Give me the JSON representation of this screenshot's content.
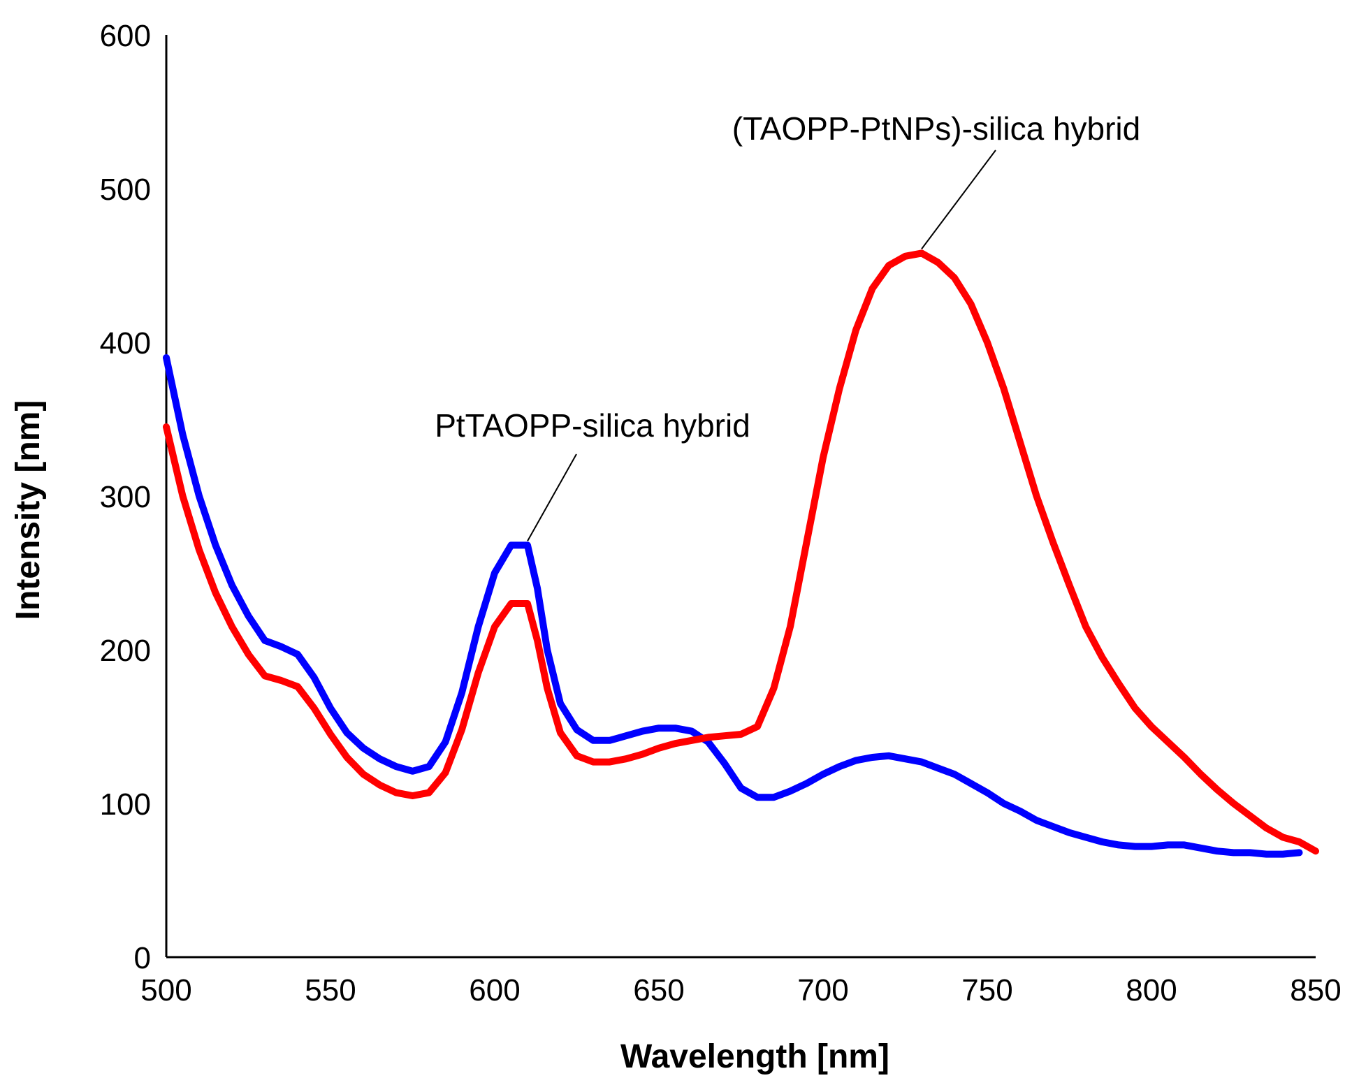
{
  "chart_data": {
    "type": "line",
    "title": "",
    "xlabel": "Wavelength [nm]",
    "ylabel": "Intensity [nm]",
    "xlim": [
      500,
      850
    ],
    "ylim": [
      0,
      600
    ],
    "xticks": [
      500,
      550,
      600,
      650,
      700,
      750,
      800,
      850
    ],
    "yticks": [
      0,
      100,
      200,
      300,
      400,
      500,
      600
    ],
    "grid": false,
    "legend": "none",
    "series": [
      {
        "name": "PtTAOPP-silica hybrid",
        "color": "#0000ff",
        "points": [
          [
            500,
            390
          ],
          [
            505,
            340
          ],
          [
            510,
            300
          ],
          [
            515,
            268
          ],
          [
            520,
            242
          ],
          [
            525,
            222
          ],
          [
            530,
            206
          ],
          [
            535,
            202
          ],
          [
            540,
            197
          ],
          [
            545,
            182
          ],
          [
            550,
            162
          ],
          [
            555,
            146
          ],
          [
            560,
            136
          ],
          [
            565,
            129
          ],
          [
            570,
            124
          ],
          [
            575,
            121
          ],
          [
            580,
            124
          ],
          [
            585,
            140
          ],
          [
            590,
            172
          ],
          [
            595,
            215
          ],
          [
            600,
            250
          ],
          [
            605,
            268
          ],
          [
            610,
            268
          ],
          [
            613,
            240
          ],
          [
            616,
            200
          ],
          [
            620,
            165
          ],
          [
            625,
            148
          ],
          [
            630,
            141
          ],
          [
            635,
            141
          ],
          [
            640,
            144
          ],
          [
            645,
            147
          ],
          [
            650,
            149
          ],
          [
            655,
            149
          ],
          [
            660,
            147
          ],
          [
            665,
            140
          ],
          [
            670,
            126
          ],
          [
            675,
            110
          ],
          [
            680,
            104
          ],
          [
            685,
            104
          ],
          [
            690,
            108
          ],
          [
            695,
            113
          ],
          [
            700,
            119
          ],
          [
            705,
            124
          ],
          [
            710,
            128
          ],
          [
            715,
            130
          ],
          [
            720,
            131
          ],
          [
            725,
            129
          ],
          [
            730,
            127
          ],
          [
            735,
            123
          ],
          [
            740,
            119
          ],
          [
            745,
            113
          ],
          [
            750,
            107
          ],
          [
            755,
            100
          ],
          [
            760,
            95
          ],
          [
            765,
            89
          ],
          [
            770,
            85
          ],
          [
            775,
            81
          ],
          [
            780,
            78
          ],
          [
            785,
            75
          ],
          [
            790,
            73
          ],
          [
            795,
            72
          ],
          [
            800,
            72
          ],
          [
            805,
            73
          ],
          [
            810,
            73
          ],
          [
            815,
            71
          ],
          [
            820,
            69
          ],
          [
            825,
            68
          ],
          [
            830,
            68
          ],
          [
            835,
            67
          ],
          [
            840,
            67
          ],
          [
            845,
            68
          ]
        ]
      },
      {
        "name": "(TAOPP-PtNPs)-silica hybrid",
        "color": "#ff0000",
        "points": [
          [
            500,
            345
          ],
          [
            505,
            300
          ],
          [
            510,
            265
          ],
          [
            515,
            237
          ],
          [
            520,
            215
          ],
          [
            525,
            197
          ],
          [
            530,
            183
          ],
          [
            535,
            180
          ],
          [
            540,
            176
          ],
          [
            545,
            162
          ],
          [
            550,
            145
          ],
          [
            555,
            130
          ],
          [
            560,
            119
          ],
          [
            565,
            112
          ],
          [
            570,
            107
          ],
          [
            575,
            105
          ],
          [
            580,
            107
          ],
          [
            585,
            120
          ],
          [
            590,
            148
          ],
          [
            595,
            185
          ],
          [
            600,
            215
          ],
          [
            605,
            230
          ],
          [
            610,
            230
          ],
          [
            613,
            206
          ],
          [
            616,
            175
          ],
          [
            620,
            146
          ],
          [
            625,
            131
          ],
          [
            630,
            127
          ],
          [
            635,
            127
          ],
          [
            640,
            129
          ],
          [
            645,
            132
          ],
          [
            650,
            136
          ],
          [
            655,
            139
          ],
          [
            660,
            141
          ],
          [
            665,
            143
          ],
          [
            670,
            144
          ],
          [
            675,
            145
          ],
          [
            680,
            150
          ],
          [
            685,
            175
          ],
          [
            690,
            215
          ],
          [
            695,
            270
          ],
          [
            700,
            325
          ],
          [
            705,
            370
          ],
          [
            710,
            408
          ],
          [
            715,
            435
          ],
          [
            720,
            450
          ],
          [
            725,
            456
          ],
          [
            730,
            458
          ],
          [
            735,
            452
          ],
          [
            740,
            442
          ],
          [
            745,
            425
          ],
          [
            750,
            400
          ],
          [
            755,
            370
          ],
          [
            760,
            335
          ],
          [
            765,
            300
          ],
          [
            770,
            270
          ],
          [
            775,
            242
          ],
          [
            780,
            215
          ],
          [
            785,
            195
          ],
          [
            790,
            178
          ],
          [
            795,
            162
          ],
          [
            800,
            150
          ],
          [
            805,
            140
          ],
          [
            810,
            130
          ],
          [
            815,
            119
          ],
          [
            820,
            109
          ],
          [
            825,
            100
          ],
          [
            830,
            92
          ],
          [
            835,
            84
          ],
          [
            840,
            78
          ],
          [
            845,
            75
          ],
          [
            850,
            69
          ]
        ]
      }
    ],
    "annotations": [
      {
        "text": "PtTAOPP-silica hybrid",
        "series": 0,
        "target": [
          610,
          268
        ]
      },
      {
        "text": "(TAOPP-PtNPs)-silica hybrid",
        "series": 1,
        "target": [
          730,
          458
        ]
      }
    ]
  }
}
